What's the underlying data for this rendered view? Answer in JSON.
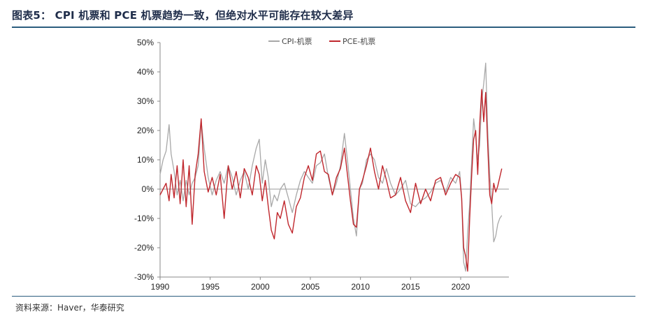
{
  "header": {
    "title": "图表5： CPI 机票和 PCE 机票趋势一致，但绝对水平可能存在较大差异"
  },
  "footer": {
    "source": "资料来源：Haver，华泰研究"
  },
  "colors": {
    "cpi": "#a8a8a8",
    "pce": "#c0272d",
    "axis": "#888888",
    "rule": "#2b5d7e"
  },
  "chart_data": {
    "type": "line",
    "title": "",
    "xlabel": "",
    "ylabel": "",
    "xlim": [
      1990,
      2024.3
    ],
    "ylim": [
      -30,
      50
    ],
    "x_ticks": [
      "1990",
      "1995",
      "2000",
      "2005",
      "2010",
      "2015",
      "2020"
    ],
    "y_ticks": [
      "50%",
      "40%",
      "30%",
      "20%",
      "10%",
      "0%",
      "-10%",
      "-20%",
      "-30%"
    ],
    "legend_position": "top-center",
    "series": [
      {
        "name": "CPI-机票",
        "x": [
          1990.0,
          1990.3,
          1990.6,
          1990.9,
          1991.1,
          1991.4,
          1991.7,
          1992.0,
          1992.3,
          1992.6,
          1992.9,
          1993.2,
          1993.5,
          1993.8,
          1994.1,
          1994.4,
          1994.8,
          1995.2,
          1995.6,
          1996.0,
          1996.4,
          1996.8,
          1997.2,
          1997.6,
          1998.0,
          1998.4,
          1998.8,
          1999.2,
          1999.6,
          1999.9,
          2000.2,
          2000.5,
          2000.8,
          2001.1,
          2001.4,
          2001.7,
          2002.0,
          2002.4,
          2002.8,
          2003.2,
          2003.6,
          2004.0,
          2004.4,
          2004.8,
          2005.2,
          2005.6,
          2006.0,
          2006.4,
          2006.8,
          2007.2,
          2007.6,
          2008.0,
          2008.4,
          2008.7,
          2009.0,
          2009.3,
          2009.6,
          2009.9,
          2010.2,
          2010.6,
          2011.0,
          2011.4,
          2011.8,
          2012.2,
          2012.6,
          2013.0,
          2013.5,
          2014.0,
          2014.5,
          2015.0,
          2015.5,
          2016.0,
          2016.5,
          2017.0,
          2017.5,
          2018.0,
          2018.5,
          2019.0,
          2019.5,
          2019.9,
          2020.1,
          2020.3,
          2020.5,
          2020.7,
          2020.9,
          2021.1,
          2021.3,
          2021.5,
          2021.7,
          2021.9,
          2022.1,
          2022.3,
          2022.5,
          2022.7,
          2022.9,
          2023.1,
          2023.3,
          2023.5,
          2023.7,
          2023.9,
          2024.1
        ],
        "values": [
          5,
          10,
          13,
          22,
          12,
          6,
          -2,
          3,
          -4,
          3,
          -2,
          2,
          4,
          8,
          23,
          14,
          4,
          -2,
          3,
          6,
          2,
          8,
          4,
          -2,
          3,
          6,
          0,
          8,
          14,
          17,
          2,
          10,
          4,
          -6,
          -2,
          -4,
          0,
          2,
          -3,
          -8,
          -2,
          3,
          6,
          4,
          2,
          8,
          9,
          12,
          4,
          -2,
          2,
          8,
          19,
          10,
          0,
          -10,
          -16,
          0,
          2,
          10,
          12,
          10,
          4,
          2,
          7,
          2,
          -2,
          0,
          3,
          -5,
          -6,
          -4,
          -3,
          -1,
          2,
          3,
          -1,
          4,
          2,
          6,
          -3,
          -25,
          -28,
          -15,
          -5,
          10,
          24,
          18,
          10,
          15,
          30,
          36,
          43,
          20,
          5,
          -5,
          -18,
          -16,
          -12,
          -10,
          -9
        ]
      },
      {
        "name": "PCE-机票",
        "x": [
          1990.0,
          1990.3,
          1990.6,
          1990.9,
          1991.1,
          1991.4,
          1991.7,
          1992.0,
          1992.3,
          1992.6,
          1992.9,
          1993.2,
          1993.5,
          1993.8,
          1994.1,
          1994.4,
          1994.8,
          1995.2,
          1995.6,
          1996.0,
          1996.4,
          1996.8,
          1997.2,
          1997.6,
          1998.0,
          1998.4,
          1998.8,
          1999.2,
          1999.6,
          1999.9,
          2000.2,
          2000.5,
          2000.8,
          2001.1,
          2001.4,
          2001.7,
          2002.0,
          2002.4,
          2002.8,
          2003.2,
          2003.6,
          2004.0,
          2004.4,
          2004.8,
          2005.2,
          2005.6,
          2006.0,
          2006.4,
          2006.8,
          2007.2,
          2007.6,
          2008.0,
          2008.4,
          2008.7,
          2009.0,
          2009.3,
          2009.6,
          2009.9,
          2010.2,
          2010.6,
          2011.0,
          2011.4,
          2011.8,
          2012.2,
          2012.6,
          2013.0,
          2013.5,
          2014.0,
          2014.5,
          2015.0,
          2015.5,
          2016.0,
          2016.5,
          2017.0,
          2017.5,
          2018.0,
          2018.5,
          2019.0,
          2019.5,
          2019.9,
          2020.1,
          2020.3,
          2020.5,
          2020.7,
          2020.9,
          2021.1,
          2021.3,
          2021.5,
          2021.7,
          2021.9,
          2022.1,
          2022.3,
          2022.5,
          2022.7,
          2022.9,
          2023.1,
          2023.3,
          2023.5,
          2023.7,
          2023.9,
          2024.1
        ],
        "values": [
          -2,
          0,
          2,
          -4,
          5,
          -3,
          8,
          -5,
          10,
          -6,
          8,
          -12,
          5,
          12,
          24,
          6,
          -1,
          4,
          -2,
          5,
          -10,
          8,
          0,
          6,
          -3,
          7,
          4,
          -2,
          8,
          5,
          -4,
          3,
          -6,
          -14,
          -17,
          -8,
          -10,
          -4,
          -12,
          -15,
          -6,
          -3,
          4,
          8,
          3,
          12,
          13,
          6,
          5,
          -2,
          4,
          7,
          14,
          5,
          -4,
          -12,
          -13,
          0,
          3,
          8,
          14,
          6,
          0,
          8,
          3,
          -3,
          -2,
          4,
          -4,
          -8,
          2,
          -5,
          0,
          -4,
          3,
          4,
          -2,
          2,
          5,
          4,
          -3,
          -20,
          -23,
          -28,
          -10,
          5,
          17,
          20,
          5,
          22,
          34,
          23,
          33,
          15,
          -2,
          -5,
          2,
          -1,
          1,
          4,
          7
        ]
      }
    ]
  }
}
